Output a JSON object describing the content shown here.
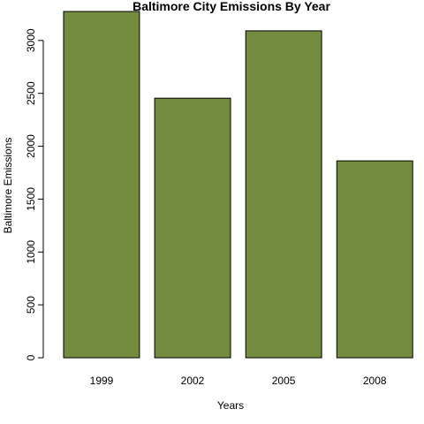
{
  "chart_data": {
    "type": "bar",
    "title": "Baltimore City Emissions By Year",
    "xlabel": "Years",
    "ylabel": "Baltimore Emissions",
    "categories": [
      "1999",
      "2002",
      "2005",
      "2008"
    ],
    "values": [
      3274,
      2454,
      3091,
      1862
    ],
    "ylim": [
      0,
      3274
    ],
    "yticks": [
      0,
      500,
      1000,
      1500,
      2000,
      2500,
      3000
    ],
    "bar_color": "#738c3f",
    "bar_border_color": "#000000",
    "grid": false,
    "legend": "none"
  }
}
